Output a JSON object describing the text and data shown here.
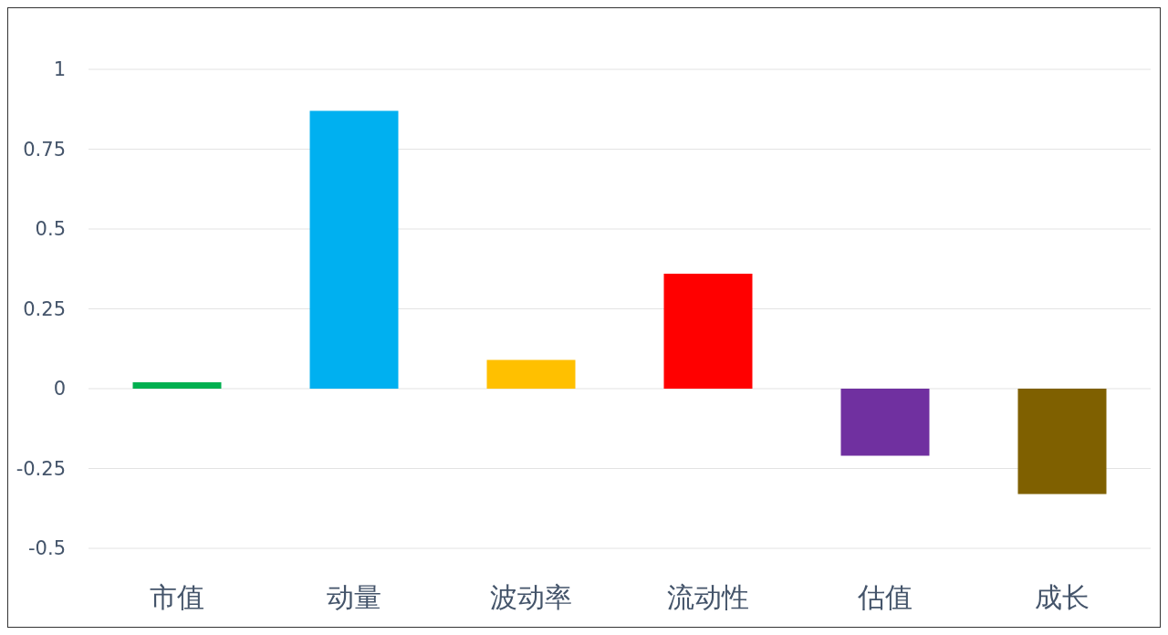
{
  "chart_data": {
    "type": "bar",
    "categories": [
      "市值",
      "动量",
      "波动率",
      "流动性",
      "估值",
      "成长"
    ],
    "values": [
      0.02,
      0.87,
      0.09,
      0.36,
      -0.21,
      -0.33
    ],
    "colors": [
      "#00b050",
      "#00b0f0",
      "#ffc000",
      "#ff0000",
      "#7030a0",
      "#7f6000"
    ],
    "ylim": [
      -0.5,
      1
    ],
    "yticks": [
      -0.5,
      -0.25,
      0,
      0.25,
      0.5,
      0.75,
      1
    ],
    "grid": "y"
  }
}
